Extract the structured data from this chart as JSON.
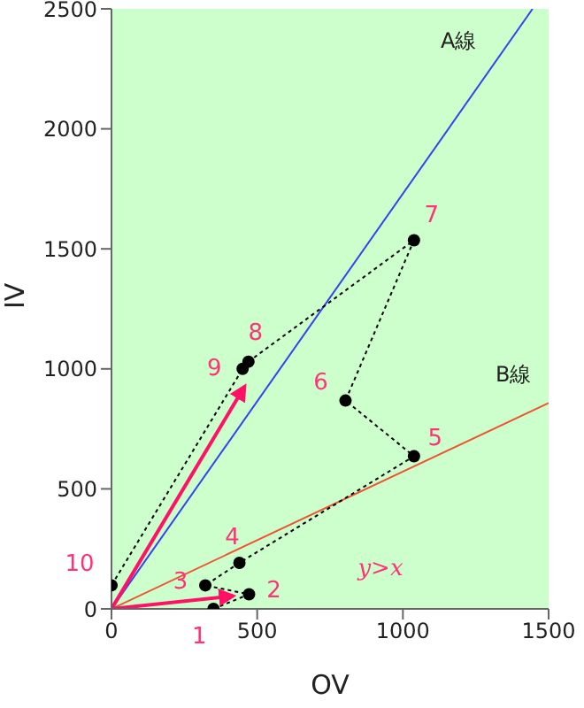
{
  "chart_data": {
    "type": "line",
    "xlabel": "OV",
    "ylabel": "IV",
    "xlim": [
      0,
      1500
    ],
    "ylim": [
      0,
      2500
    ],
    "xticks": [
      0,
      500,
      1000,
      1500
    ],
    "yticks": [
      0,
      500,
      1000,
      1500,
      2000,
      2500
    ],
    "grid": false,
    "legend": false,
    "series": [
      {
        "name": "A線",
        "color": "#3344ee",
        "x": [
          0,
          1445
        ],
        "values": [
          0,
          2500
        ],
        "marker": "none",
        "line_style": "solid"
      },
      {
        "name": "B線",
        "color": "#ee5533",
        "x": [
          0,
          1500
        ],
        "values": [
          0,
          858
        ],
        "marker": "none",
        "line_style": "solid"
      },
      {
        "color": "#000000",
        "x": [
          350,
          472,
          322,
          439,
          1038,
          803,
          1038,
          470,
          450,
          0
        ],
        "values": [
          0,
          61,
          98,
          192,
          636,
          868,
          1536,
          1030,
          1000,
          98
        ],
        "marker": "circle",
        "line_style": "dotted"
      },
      {
        "color": "#ff1166",
        "x": [
          0,
          417
        ],
        "values": [
          0,
          54
        ],
        "line_style": "solid"
      },
      {
        "color": "#ff1166",
        "x": [
          0,
          457
        ],
        "values": [
          0,
          927
        ],
        "line_style": "solid"
      }
    ],
    "annotations": [
      {
        "text": "1",
        "x": 350,
        "y": 0
      },
      {
        "text": "2",
        "x": 472,
        "y": 61
      },
      {
        "text": "3",
        "x": 322,
        "y": 98
      },
      {
        "text": "4",
        "x": 439,
        "y": 192
      },
      {
        "text": "5",
        "x": 1038,
        "y": 636
      },
      {
        "text": "6",
        "x": 803,
        "y": 868
      },
      {
        "text": "7",
        "x": 1038,
        "y": 1536
      },
      {
        "text": "8",
        "x": 470,
        "y": 1030
      },
      {
        "text": "9",
        "x": 450,
        "y": 1000
      },
      {
        "text": "10",
        "x": 0,
        "y": 98
      },
      "y>x"
    ]
  }
}
